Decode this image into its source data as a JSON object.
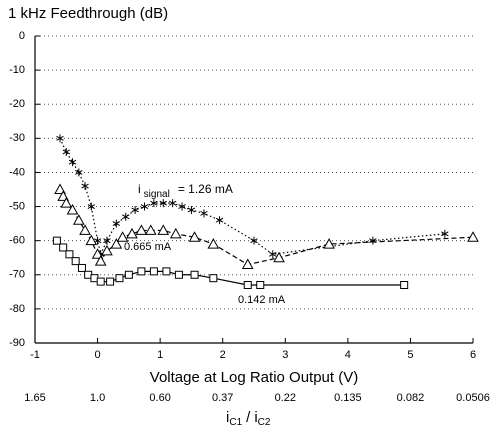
{
  "chart_data": {
    "type": "line",
    "title": "1 kHz Feedthrough (dB)",
    "xlabel": "Voltage at Log Ratio Output (V)",
    "xlim": [
      -1,
      6
    ],
    "xticks": [
      -1,
      0,
      1,
      2,
      3,
      4,
      5,
      6
    ],
    "ylim": [
      -90,
      0
    ],
    "yticks": [
      0,
      -10,
      -20,
      -30,
      -40,
      -50,
      -60,
      -70,
      -80,
      -90
    ],
    "grid": true,
    "x2ticks": [
      {
        "value": -1,
        "label": "1.65"
      },
      {
        "value": 0,
        "label": "1.0"
      },
      {
        "value": 1,
        "label": "0.60"
      },
      {
        "value": 2,
        "label": "0.37"
      },
      {
        "value": 3,
        "label": "0.22"
      },
      {
        "value": 4,
        "label": "0.135"
      },
      {
        "value": 5,
        "label": "0.082"
      },
      {
        "value": 6,
        "label": "0.0506"
      }
    ],
    "x2label_parts": [
      "i",
      "C1",
      "/",
      "i",
      "C2"
    ],
    "annotations": [
      {
        "parts": [
          "i",
          "signal",
          "= 1.26 mA"
        ]
      },
      {
        "parts": [
          "0.665 mA"
        ]
      },
      {
        "parts": [
          "0.142 mA"
        ]
      }
    ],
    "series": [
      {
        "marker": "star",
        "line": "dotted",
        "color": "#000000",
        "x": [
          -0.6,
          -0.5,
          -0.4,
          -0.3,
          -0.2,
          -0.1,
          0,
          0.05,
          0.15,
          0.3,
          0.45,
          0.6,
          0.75,
          0.9,
          1.05,
          1.2,
          1.35,
          1.5,
          1.7,
          1.95,
          2.5,
          2.8,
          4.4,
          5.55
        ],
        "values": [
          -30,
          -34,
          -37,
          -40,
          -44,
          -50,
          -60,
          -64,
          -60,
          -55,
          -53,
          -51,
          -50,
          -49,
          -49,
          -49,
          -50,
          -51,
          -52,
          -54,
          -60,
          -64,
          -60,
          -58
        ]
      },
      {
        "marker": "triangle",
        "line": "dashed",
        "color": "#000000",
        "x": [
          -0.6,
          -0.55,
          -0.5,
          -0.4,
          -0.3,
          -0.2,
          -0.1,
          0,
          0.05,
          0.15,
          0.3,
          0.4,
          0.55,
          0.7,
          0.85,
          1.05,
          1.25,
          1.55,
          1.85,
          2.4,
          2.9,
          3.7,
          6
        ],
        "values": [
          -45,
          -47,
          -49,
          -51,
          -54,
          -57,
          -60,
          -64,
          -66,
          -63,
          -61,
          -59,
          -58,
          -57,
          -57,
          -57,
          -58,
          -59,
          -61,
          -67,
          -65,
          -61,
          -59
        ]
      },
      {
        "marker": "square",
        "line": "solid",
        "color": "#000000",
        "x": [
          -0.65,
          -0.55,
          -0.45,
          -0.35,
          -0.25,
          -0.15,
          -0.05,
          0.05,
          0.2,
          0.35,
          0.5,
          0.7,
          0.9,
          1.1,
          1.3,
          1.55,
          1.85,
          2.4,
          2.6,
          4.9
        ],
        "values": [
          -60,
          -62,
          -64,
          -66,
          -68,
          -70,
          -71,
          -72,
          -72,
          -71,
          -70,
          -69,
          -69,
          -69,
          -70,
          -70,
          -71,
          -73,
          -73,
          -73
        ]
      }
    ]
  }
}
